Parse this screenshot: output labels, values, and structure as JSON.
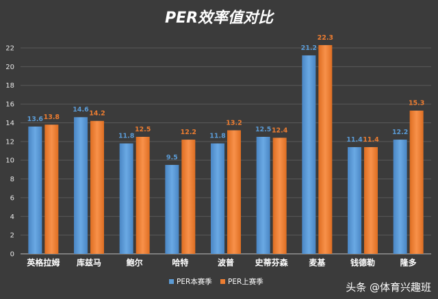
{
  "chart_data": {
    "type": "bar",
    "title": "PER效率值对比",
    "categories": [
      "英格拉姆",
      "库兹马",
      "鲍尔",
      "哈特",
      "波普",
      "史蒂芬森",
      "麦基",
      "钱德勒",
      "隆多"
    ],
    "series": [
      {
        "name": "PER本赛季",
        "color": "#5b9bd5",
        "values": [
          13.6,
          14.6,
          11.8,
          9.5,
          11.8,
          12.5,
          21.2,
          11.4,
          12.2
        ]
      },
      {
        "name": "PER上赛季",
        "color": "#ed7d31",
        "values": [
          13.8,
          14.2,
          12.5,
          12.2,
          13.2,
          12.4,
          22.3,
          11.4,
          15.3
        ]
      }
    ],
    "ylim": [
      0,
      22
    ],
    "yticks": [
      0,
      2,
      4,
      6,
      8,
      10,
      12,
      14,
      16,
      18,
      20,
      22
    ],
    "grid": true,
    "legend": "bottom"
  },
  "watermark": "头条 @体育兴趣班"
}
